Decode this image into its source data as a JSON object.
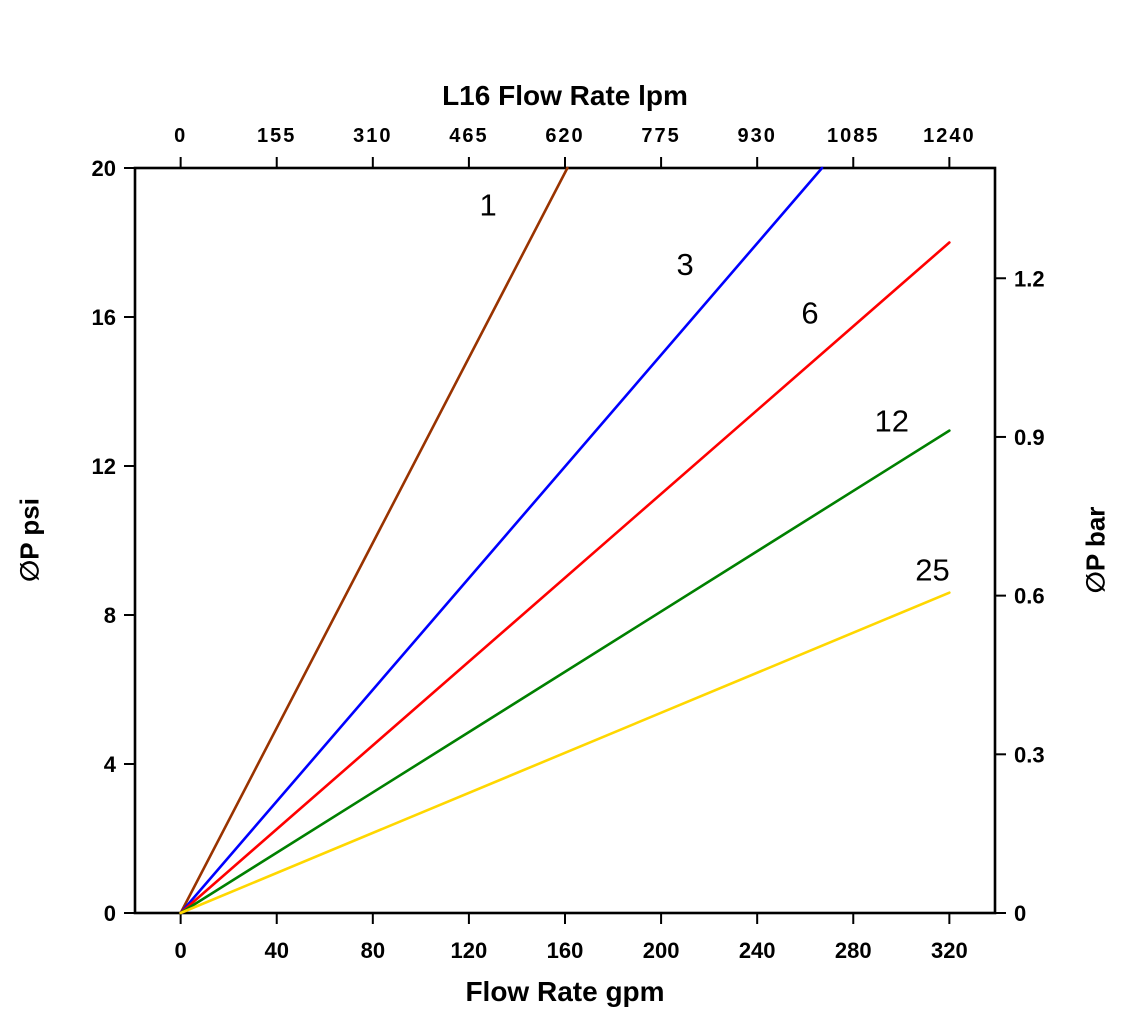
{
  "chart_data": {
    "type": "line",
    "top_axis": {
      "title": "L16 Flow Rate lpm",
      "tick_labels": [
        "0",
        "155",
        "310",
        "465",
        "620",
        "775",
        "930",
        "1085",
        "1240"
      ],
      "tick_values_lpm": [
        0,
        155,
        310,
        465,
        620,
        775,
        930,
        1085,
        1240
      ]
    },
    "bottom_axis": {
      "title": "Flow Rate gpm",
      "tick_labels": [
        "0",
        "40",
        "80",
        "120",
        "160",
        "200",
        "240",
        "280",
        "320"
      ],
      "tick_values_gpm": [
        0,
        40,
        80,
        120,
        160,
        200,
        240,
        280,
        320
      ]
    },
    "left_axis": {
      "title": "∅P psi",
      "tick_labels": [
        "0",
        "4",
        "8",
        "12",
        "16",
        "20"
      ],
      "tick_values_psi": [
        0,
        4,
        8,
        12,
        16,
        20
      ]
    },
    "right_axis": {
      "title": "∅P bar",
      "tick_labels": [
        "0",
        "0.3",
        "0.6",
        "0.9",
        "1.2"
      ],
      "tick_values_bar": [
        0,
        0.3,
        0.6,
        0.9,
        1.2
      ],
      "psi_per_bar": 14.2
    },
    "xlim_gpm": [
      -19,
      339
    ],
    "ylim_psi": [
      0,
      20
    ],
    "grid": false,
    "legend": "inline-labels",
    "frame_color": "#000000",
    "series": [
      {
        "label": "1",
        "color": "#993300",
        "points_gpm_psi": [
          [
            0,
            0
          ],
          [
            161,
            20
          ]
        ],
        "label_pos_gpm_psi": [
          128,
          19.0
        ]
      },
      {
        "label": "3",
        "color": "#0000FF",
        "points_gpm_psi": [
          [
            0,
            0
          ],
          [
            267,
            20
          ]
        ],
        "label_pos_gpm_psi": [
          210,
          17.4
        ]
      },
      {
        "label": "6",
        "color": "#FF0000",
        "points_gpm_psi": [
          [
            0,
            0
          ],
          [
            320,
            18.0
          ]
        ],
        "label_pos_gpm_psi": [
          262,
          16.1
        ]
      },
      {
        "label": "12",
        "color": "#008000",
        "points_gpm_psi": [
          [
            0,
            0
          ],
          [
            320,
            12.95
          ]
        ],
        "label_pos_gpm_psi": [
          296,
          13.2
        ]
      },
      {
        "label": "25",
        "color": "#FFD700",
        "points_gpm_psi": [
          [
            0,
            0
          ],
          [
            320,
            8.6
          ]
        ],
        "label_pos_gpm_psi": [
          313,
          9.2
        ]
      }
    ]
  }
}
